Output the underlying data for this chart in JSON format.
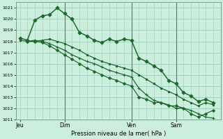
{
  "background_color": "#cceedd",
  "plot_bg_color": "#cceedd",
  "grid_color": "#99ccbb",
  "line_color": "#1a6b2a",
  "marker_color": "#1a6b2a",
  "title": "Pression niveau de la mer( hPa )",
  "xlabel_ticks": [
    "Jeu",
    "Dim",
    "Ven",
    "Sam"
  ],
  "xlabel_tick_positions": [
    0,
    24,
    60,
    84
  ],
  "vline_positions": [
    24,
    60,
    84
  ],
  "ylim": [
    1011,
    1021.5
  ],
  "xlim": [
    -2,
    108
  ],
  "yticks": [
    1011,
    1012,
    1013,
    1014,
    1015,
    1016,
    1017,
    1018,
    1019,
    1020,
    1021
  ],
  "series": [
    {
      "x": [
        0,
        4,
        8,
        12,
        16,
        20,
        24,
        28,
        32,
        36,
        40,
        44,
        48,
        52,
        56,
        60,
        64,
        68,
        72,
        76,
        80,
        84,
        88,
        92,
        96,
        100,
        104
      ],
      "y": [
        1018.3,
        1018.1,
        1019.9,
        1020.3,
        1020.4,
        1021.0,
        1020.5,
        1020.0,
        1018.8,
        1018.5,
        1018.1,
        1017.9,
        1018.2,
        1018.0,
        1018.2,
        1018.1,
        1016.5,
        1016.2,
        1015.8,
        1015.4,
        1014.5,
        1014.2,
        1013.4,
        1013.1,
        1012.6,
        1012.8,
        1012.5
      ],
      "marker": "D",
      "markersize": 2.5,
      "linewidth": 1.1
    },
    {
      "x": [
        0,
        4,
        8,
        12,
        16,
        20,
        24,
        28,
        32,
        36,
        40,
        44,
        48,
        52,
        56,
        60,
        64,
        68,
        72,
        76,
        80,
        84,
        88,
        92,
        96,
        100,
        104
      ],
      "y": [
        1018.1,
        1018.0,
        1018.0,
        1018.1,
        1018.2,
        1018.0,
        1017.8,
        1017.5,
        1017.2,
        1016.8,
        1016.5,
        1016.2,
        1016.0,
        1015.8,
        1015.6,
        1015.4,
        1015.0,
        1014.6,
        1014.2,
        1013.8,
        1013.5,
        1013.2,
        1012.8,
        1012.5,
        1012.2,
        1012.5,
        1012.3
      ],
      "marker": "s",
      "markersize": 2.0,
      "linewidth": 0.9
    },
    {
      "x": [
        4,
        8,
        12,
        16,
        20,
        24,
        28,
        32,
        36,
        40,
        44,
        48,
        52,
        56,
        60,
        64,
        68,
        72,
        76,
        80,
        84,
        88,
        92,
        96,
        100,
        104
      ],
      "y": [
        1018.0,
        1018.1,
        1018.0,
        1017.8,
        1017.5,
        1017.2,
        1016.8,
        1016.5,
        1016.2,
        1016.0,
        1015.7,
        1015.4,
        1015.2,
        1015.0,
        1014.8,
        1013.8,
        1013.2,
        1012.7,
        1012.5,
        1012.3,
        1012.0,
        1012.0,
        1011.8,
        1011.5,
        1011.2,
        1011.1
      ],
      "marker": "+",
      "markersize": 3.5,
      "linewidth": 0.9
    },
    {
      "x": [
        4,
        8,
        12,
        16,
        20,
        24,
        28,
        32,
        36,
        40,
        44,
        48,
        52,
        56,
        60,
        64,
        68,
        72,
        76,
        80,
        84,
        88,
        92,
        96,
        100,
        104
      ],
      "y": [
        1018.0,
        1018.0,
        1017.9,
        1017.6,
        1017.2,
        1016.8,
        1016.4,
        1016.0,
        1015.6,
        1015.3,
        1015.0,
        1014.7,
        1014.5,
        1014.2,
        1014.0,
        1013.0,
        1012.8,
        1012.5,
        1012.5,
        1012.2,
        1012.2,
        1012.0,
        1011.5,
        1011.2,
        1011.5,
        1011.8
      ],
      "marker": "D",
      "markersize": 2.0,
      "linewidth": 0.9
    }
  ]
}
